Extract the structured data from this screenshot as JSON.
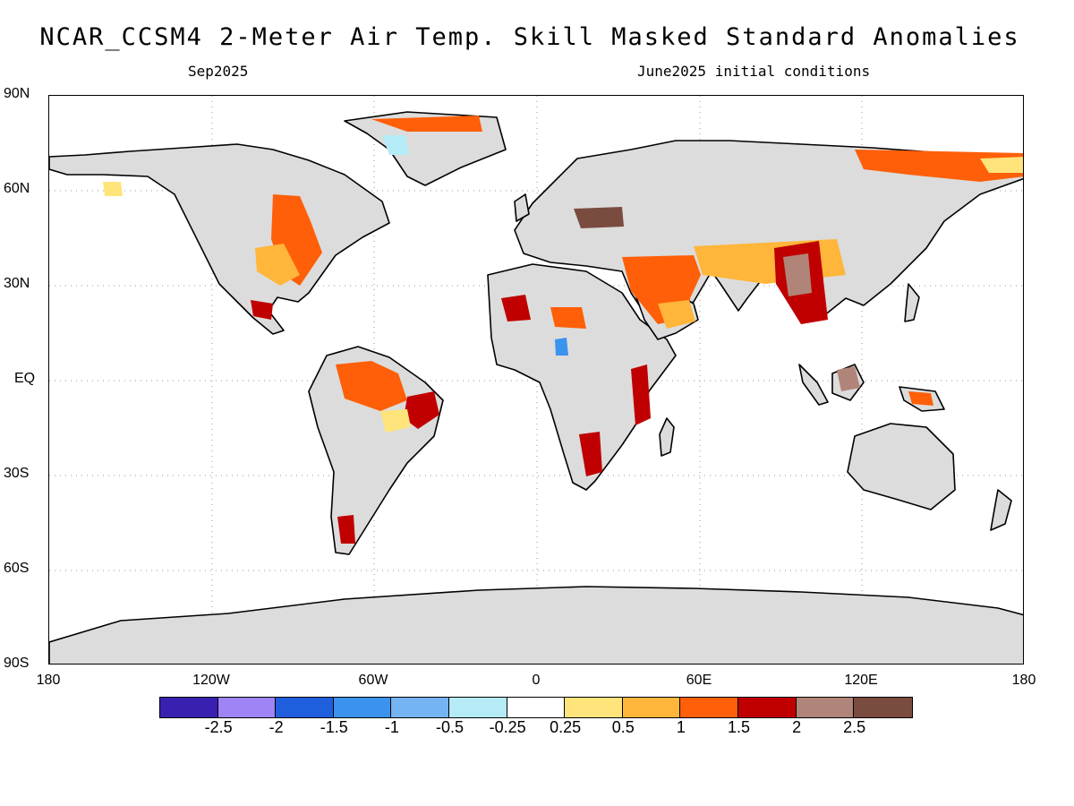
{
  "title": "NCAR_CCSM4 2-Meter Air Temp. Skill Masked Standard Anomalies",
  "valid_month": "Sep2025",
  "initial_conditions": "June2025 initial conditions",
  "map": {
    "projection": "equirectangular",
    "land_color": "#dcdcdc",
    "ocean_color": "#ffffff",
    "coastline_color": "#000000",
    "gridlines": "dotted",
    "lat_ticks": [
      "90N",
      "60N",
      "30N",
      "EQ",
      "30S",
      "60S",
      "90S"
    ],
    "lon_ticks": [
      "180",
      "120W",
      "60W",
      "0",
      "60E",
      "120E",
      "180"
    ]
  },
  "colorbar": {
    "colors": [
      "#3a20b0",
      "#9f84f5",
      "#1f5fdd",
      "#3b93ee",
      "#74b4f3",
      "#b4ebf6",
      "#ffffff",
      "#ffe47c",
      "#ffb63a",
      "#ff5f08",
      "#c00000",
      "#b08478",
      "#7a4c40"
    ],
    "labels": [
      "-2.5",
      "-2",
      "-1.5",
      "-1",
      "-0.5",
      "-0.25",
      "0.25",
      "0.5",
      "1",
      "1.5",
      "2",
      "2.5"
    ]
  },
  "anomaly_regions": [
    {
      "region": "Central & Eastern United States",
      "category": "1 to 1.5"
    },
    {
      "region": "Mexico",
      "category": "1.5 to 2"
    },
    {
      "region": "Amazon / Northern Brazil",
      "category": "1 to 1.5"
    },
    {
      "region": "Northeastern Brazil",
      "category": "1.5 to 2"
    },
    {
      "region": "Patagonia",
      "category": "1.5 to 2"
    },
    {
      "region": "Sahara (Western)",
      "category": "1.5 to 2"
    },
    {
      "region": "Southern Africa",
      "category": "1.5 to 2"
    },
    {
      "region": "East Africa",
      "category": "1.5 to 2"
    },
    {
      "region": "Middle East / Iran",
      "category": "1.5 to 2"
    },
    {
      "region": "Tibetan Plateau / Western China",
      "category": "2 to 2.5"
    },
    {
      "region": "Northern Siberia coast",
      "category": "1 to 1.5"
    },
    {
      "region": "Borneo",
      "category": "2 to 2.5"
    },
    {
      "region": "Eastern Russia / Ukraine",
      "category": ">2.5"
    },
    {
      "region": "Greenland east coast",
      "category": "1 to 1.5"
    },
    {
      "region": "Greenland interior",
      "category": "-0.5 to -0.25"
    },
    {
      "region": "Central Africa",
      "category": "-1.5 to -1"
    }
  ]
}
